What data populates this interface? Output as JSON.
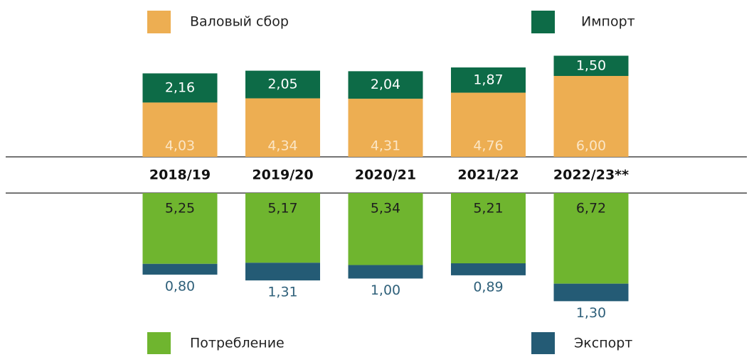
{
  "chart_data": {
    "type": "bar",
    "categories": [
      "2018/19",
      "2019/20",
      "2020/21",
      "2021/22",
      "2022/23**"
    ],
    "series": [
      {
        "name": "Валовый сбор",
        "color": "#edae52",
        "direction": "up",
        "values": [
          4.03,
          4.34,
          4.31,
          4.76,
          6.0
        ],
        "value_labels": [
          "4,03",
          "4,34",
          "4,31",
          "4,76",
          "6,00"
        ]
      },
      {
        "name": "Импорт",
        "color": "#0d6b47",
        "direction": "up",
        "values": [
          2.16,
          2.05,
          2.04,
          1.87,
          1.5
        ],
        "value_labels": [
          "2,16",
          "2,05",
          "2,04",
          "1,87",
          "1,50"
        ]
      },
      {
        "name": "Потребление",
        "color": "#6fb52f",
        "direction": "down",
        "values": [
          5.25,
          5.17,
          5.34,
          5.21,
          6.72
        ],
        "value_labels": [
          "5,25",
          "5,17",
          "5,34",
          "5,21",
          "6,72"
        ]
      },
      {
        "name": "Экспорт",
        "color": "#245b75",
        "direction": "down",
        "values": [
          0.8,
          1.31,
          1.0,
          0.89,
          1.3
        ],
        "value_labels": [
          "0,80",
          "1,31",
          "1,00",
          "0,89",
          "1,30"
        ]
      }
    ]
  }
}
